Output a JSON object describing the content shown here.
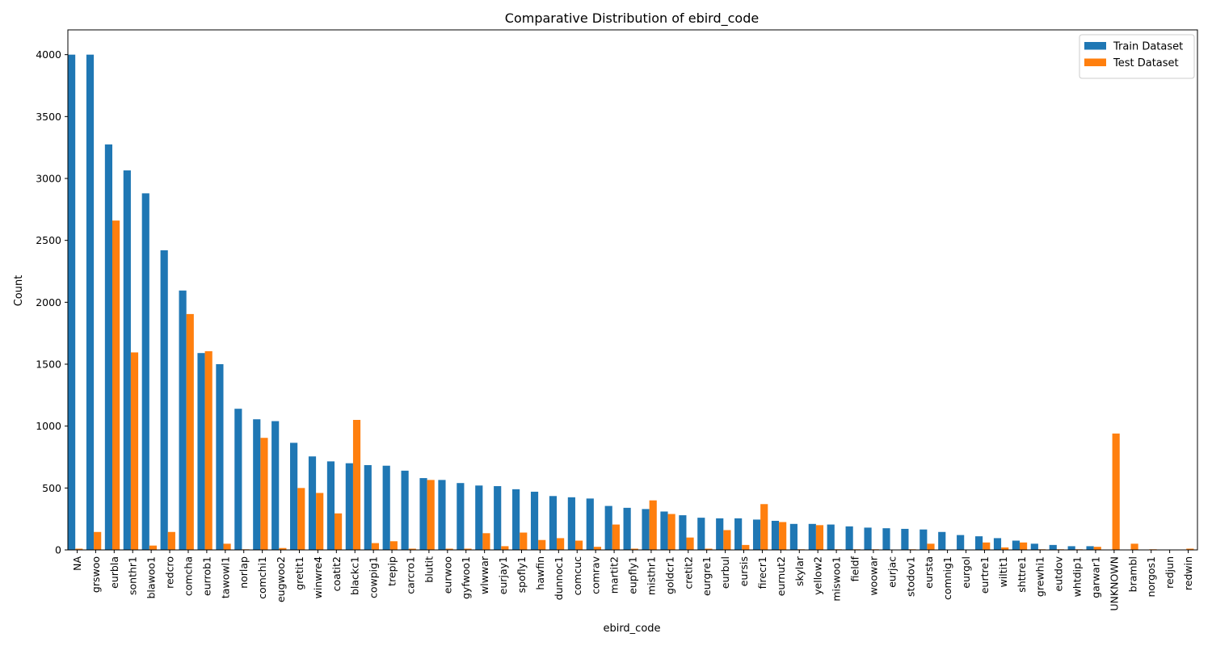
{
  "chart_data": {
    "type": "bar",
    "title": "Comparative Distribution of ebird_code",
    "xlabel": "ebird_code",
    "ylabel": "Count",
    "ylim": [
      0,
      4200
    ],
    "yticks": [
      0,
      500,
      1000,
      1500,
      2000,
      2500,
      3000,
      3500,
      4000
    ],
    "grid": false,
    "legend_position": "top-right",
    "categories": [
      "NA",
      "grswoo",
      "eurbla",
      "sonthr1",
      "blawoo1",
      "redcro",
      "comcha",
      "eurrob1",
      "tawowl1",
      "norlap",
      "comchi1",
      "eugwoo2",
      "gretit1",
      "winwre4",
      "coatit2",
      "blackc1",
      "cowpig1",
      "trepip",
      "carcro1",
      "blutit",
      "eurwoo",
      "gyfwoo1",
      "wlwwar",
      "eurjay1",
      "spofly1",
      "hawfin",
      "dunnoc1",
      "comcuc",
      "comrav",
      "martit2",
      "eupfly1",
      "misthr1",
      "goldcr1",
      "cretit2",
      "eurgre1",
      "eurbul",
      "eursis",
      "firecr1",
      "eurnut2",
      "skylar",
      "yellow2",
      "miswoo1",
      "fieldf",
      "woowar",
      "eurjac",
      "stodov1",
      "eursta",
      "comnig1",
      "eurgol",
      "eurtre1",
      "wiltit1",
      "shttre1",
      "grewhi1",
      "eutdov",
      "whtdip1",
      "garwar1",
      "UNKNOWN",
      "brambl",
      "norgos1",
      "redjun",
      "redwin"
    ],
    "series": [
      {
        "name": "Train Dataset",
        "color": "#1f77b4",
        "values": [
          4000,
          4000,
          3275,
          3065,
          2880,
          2420,
          2095,
          1590,
          1500,
          1140,
          1055,
          1040,
          865,
          755,
          715,
          700,
          685,
          680,
          640,
          580,
          565,
          540,
          520,
          515,
          490,
          470,
          435,
          425,
          415,
          355,
          340,
          330,
          310,
          280,
          260,
          255,
          255,
          245,
          235,
          210,
          210,
          205,
          190,
          180,
          175,
          170,
          165,
          145,
          120,
          110,
          95,
          75,
          50,
          40,
          30,
          30,
          0,
          0,
          0,
          0,
          0
        ]
      },
      {
        "name": "Test Dataset",
        "color": "#ff7f0e",
        "values": [
          10,
          145,
          2660,
          1595,
          35,
          145,
          1905,
          1605,
          50,
          5,
          905,
          15,
          500,
          460,
          295,
          1050,
          55,
          70,
          10,
          565,
          10,
          10,
          135,
          30,
          140,
          80,
          95,
          75,
          25,
          205,
          10,
          400,
          290,
          100,
          10,
          160,
          40,
          370,
          225,
          5,
          200,
          5,
          5,
          5,
          0,
          5,
          50,
          0,
          0,
          60,
          20,
          60,
          5,
          5,
          5,
          25,
          940,
          50,
          5,
          0,
          10
        ]
      }
    ]
  }
}
